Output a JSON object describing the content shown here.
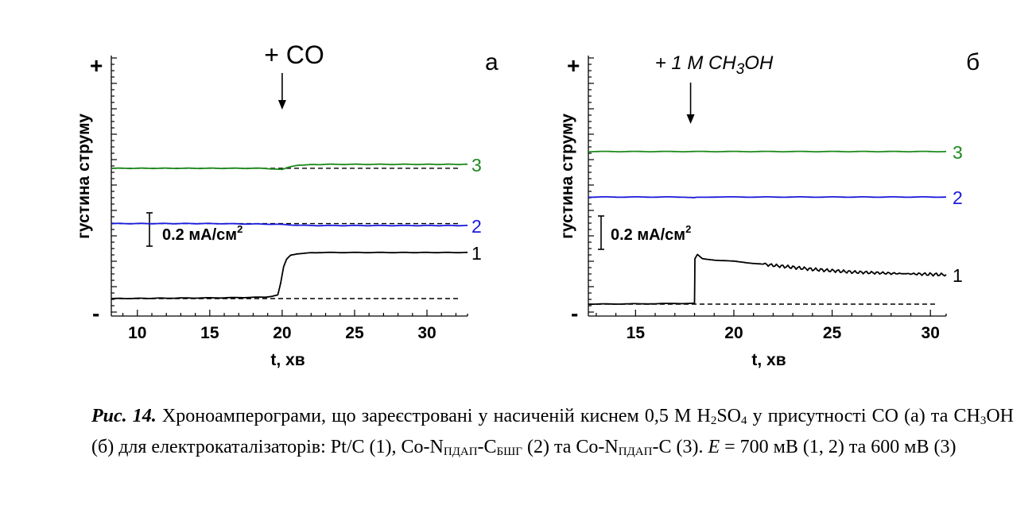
{
  "colors": {
    "curve1": "#000000",
    "curve2": "#1a1adc",
    "curve3": "#1d8a1d"
  },
  "chart_data": [
    {
      "type": "line",
      "panel_label": "а",
      "annotation": "+ CO",
      "annotation_x": 20,
      "plus_label": "+",
      "minus_label": "-",
      "xlabel": "t, хв",
      "ylabel": "густина струму",
      "xlim": [
        8.2,
        32.8
      ],
      "xticks": [
        10,
        15,
        20,
        25,
        30
      ],
      "scale_bar_label": "0.2 мА/см",
      "scale_bar_sup": "2",
      "series": [
        {
          "name": "3",
          "baseline": 0.99,
          "x": [
            8.2,
            18.5,
            19.6,
            20.0,
            20.3,
            21.2,
            23,
            26,
            30,
            32.8
          ],
          "values": [
            0.99,
            0.99,
            0.985,
            0.98,
            0.995,
            1.015,
            1.02,
            1.02,
            1.02,
            1.02
          ]
        },
        {
          "name": "2",
          "baseline": 0.57,
          "x": [
            8.2,
            15,
            19.5,
            20.5,
            22,
            25,
            30,
            32.8
          ],
          "values": [
            0.57,
            0.57,
            0.565,
            0.56,
            0.555,
            0.555,
            0.555,
            0.555
          ]
        },
        {
          "name": "1",
          "baseline": 0.0,
          "x": [
            8.2,
            12,
            16,
            18.5,
            19.3,
            19.7,
            19.9,
            20.1,
            20.3,
            20.6,
            21.0,
            21.6,
            22.5,
            25,
            28,
            32.8
          ],
          "values": [
            0.0,
            0.003,
            0.006,
            0.01,
            0.015,
            0.03,
            0.12,
            0.24,
            0.3,
            0.33,
            0.34,
            0.345,
            0.35,
            0.35,
            0.35,
            0.35
          ]
        }
      ]
    },
    {
      "type": "line",
      "panel_label": "б",
      "annotation": "+ 1 M CH",
      "annotation_sub": "3",
      "annotation_tail": "OH",
      "annotation_x": 17.8,
      "plus_label": "+",
      "minus_label": "-",
      "xlabel": "t, хв",
      "ylabel": "густина струму",
      "xlim": [
        12.6,
        30.8
      ],
      "xticks": [
        15,
        20,
        25,
        30
      ],
      "scale_bar_label": "0.2 мА/см",
      "scale_bar_sup": "2",
      "series": [
        {
          "name": "3",
          "baseline": null,
          "x": [
            12.6,
            16,
            18,
            20,
            25,
            30.8
          ],
          "values": [
            1.14,
            1.14,
            1.14,
            1.14,
            1.14,
            1.14
          ]
        },
        {
          "name": "2",
          "baseline": null,
          "x": [
            12.6,
            17.5,
            18.0,
            18.3,
            20,
            25,
            30.8
          ],
          "values": [
            0.8,
            0.8,
            0.795,
            0.8,
            0.8,
            0.8,
            0.8
          ]
        },
        {
          "name": "1",
          "baseline": 0.0,
          "x": [
            12.6,
            15,
            18.0,
            18.02,
            18.15,
            18.4,
            19,
            20,
            22,
            24,
            26,
            28,
            30.8
          ],
          "values": [
            0.0,
            0.002,
            0.006,
            0.34,
            0.37,
            0.34,
            0.33,
            0.32,
            0.29,
            0.26,
            0.24,
            0.23,
            0.22
          ]
        }
      ]
    }
  ],
  "caption": {
    "lead": "Рис. 14.",
    "line_parts": [
      " Хроноамперограми, що зареєстровані у насиченій киснем 0,5 М H",
      "2",
      "SO",
      "4",
      " у присутності СО (а) та СН",
      "3",
      "ОН (б) для електрокаталізаторів: Pt/C (1), Co-N",
      "ПДАП",
      "-C",
      "БШГ",
      " (2) та Co-N",
      "ПДАП",
      "-C (3). ",
      "E",
      " = 700 мВ (1, 2) та 600 мВ (3)"
    ]
  }
}
